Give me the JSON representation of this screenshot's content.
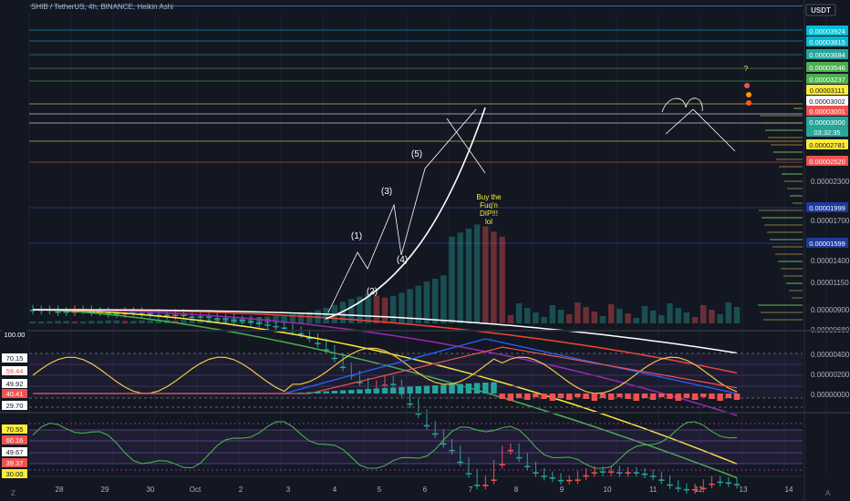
{
  "title": "SHIB / TetherUS, 4h, BINANCE, Heikin Ashi",
  "currency_badge": "USDT",
  "bottom_left_glyph": "Z",
  "bottom_right_glyph": "A",
  "chart_data": [
    {
      "type": "candlestick",
      "y_scale": "log",
      "ylim": [
        6.8e-06,
        4.3e-06
      ],
      "x_ticks": [
        "28",
        "29",
        "30",
        "Oct",
        "2",
        "3",
        "4",
        "5",
        "6",
        "7",
        "8",
        "9",
        "10",
        "11",
        "12",
        "13",
        "14"
      ],
      "y_ticks": [
        "0.00002300",
        "0.00001700",
        "0.00001400",
        "0.00001150",
        "0.00000900",
        "0.00000680"
      ],
      "price_labels": [
        {
          "value": "0.00003924",
          "color": "#00bcd4"
        },
        {
          "value": "0.00003815",
          "color": "#00bcd4"
        },
        {
          "value": "0.00003684",
          "color": "#26a69a"
        },
        {
          "value": "0.00003546",
          "color": "#4caf50"
        },
        {
          "value": "0.00003237",
          "color": "#4caf50"
        },
        {
          "value": "0.00003111",
          "color": "#ffeb3b"
        },
        {
          "value": "0.00003002",
          "color": "#ffffff"
        },
        {
          "value": "0.00003001",
          "color": "#ef5350"
        },
        {
          "value": "0.00003000",
          "color": "#26a69a"
        },
        {
          "value": "03:32:35",
          "color": "#26a69a"
        },
        {
          "value": "0.00002781",
          "color": "#ffeb3b"
        },
        {
          "value": "0.00002520",
          "color": "#ef5350"
        },
        {
          "value": "0.00001999",
          "color": "#1e3a9a"
        },
        {
          "value": "0.00001599",
          "color": "#1e3a9a"
        }
      ],
      "closes": [
        6.8e-06,
        6.8e-06,
        6.8e-06,
        6.9e-06,
        6.9e-06,
        6.8e-06,
        6.8e-06,
        6.9e-06,
        6.9e-06,
        7e-06,
        7e-06,
        6.9e-06,
        6.9e-06,
        7e-06,
        7e-06,
        7.1e-06,
        7.1e-06,
        7e-06,
        7.1e-06,
        7.2e-06,
        7.2e-06,
        7.2e-06,
        7.3e-06,
        7.3e-06,
        7.4e-06,
        7.4e-06,
        7.5e-06,
        7.6e-06,
        7.7e-06,
        7.8e-06,
        7.9e-06,
        8.1e-06,
        8.3e-06,
        8.6e-06,
        9e-06,
        9.5e-06,
        1.02e-05,
        1.1e-05,
        1.18e-05,
        1.25e-05,
        1.33e-05,
        1.28e-05,
        1.22e-05,
        1.27e-05,
        1.37e-05,
        1.5e-05,
        1.63e-05,
        1.8e-05,
        1.93e-05,
        2.1e-05,
        2.22e-05,
        2.45e-05,
        2.7e-05,
        2.98e-05,
        2.85e-05,
        2.5e-05,
        2.22e-05,
        2.18e-05,
        2.36e-05,
        2.54e-05,
        2.68e-05,
        2.76e-05,
        2.8e-05,
        2.86e-05,
        2.85e-05,
        2.75e-05,
        2.68e-05,
        2.64e-05,
        2.66e-05,
        2.63e-05,
        2.68e-05,
        2.66e-05,
        2.68e-05,
        2.71e-05,
        2.76e-05,
        2.85e-05,
        2.97e-05,
        3.05e-05,
        3.09e-05,
        3.06e-05,
        2.95e-05,
        2.87e-05,
        2.9e-05,
        2.92e-05,
        2.96e-05
      ],
      "ema_lines": [
        {
          "color": "#4caf50",
          "end": 2.81e-05
        },
        {
          "color": "#ffeb3b",
          "end": 2.5e-05
        },
        {
          "color": "#9c27b0",
          "end": 1.66e-05
        },
        {
          "color": "#f44336",
          "end": 1.16e-05
        },
        {
          "color": "#ffffff",
          "end": 9.8e-06
        }
      ],
      "annotations": [
        "(1)",
        "(2)",
        "(3)",
        "(4)",
        "(5)",
        "Buy the",
        "Fuq'n",
        "DIP!!!",
        "lol",
        "?"
      ]
    },
    {
      "type": "line",
      "panel": "macd-rsi",
      "y_ticks": [
        "0.00000400",
        "0.00000200",
        "0.00000000"
      ],
      "left_labels": [
        {
          "value": "100.00",
          "color": "#ffffff",
          "bg": "#131722"
        },
        {
          "value": "70.15",
          "color": "#131722",
          "bg": "#ffffff"
        },
        {
          "value": "59.44",
          "color": "#ef5350",
          "bg": "#ffffff"
        },
        {
          "value": "49.92",
          "color": "#131722",
          "bg": "#ffffff"
        },
        {
          "value": "40.41",
          "color": "#ffffff",
          "bg": "#ef5350"
        },
        {
          "value": "29.70",
          "color": "#131722",
          "bg": "#ffffff"
        }
      ]
    },
    {
      "type": "line",
      "panel": "stoch",
      "left_labels": [
        {
          "value": "70.55",
          "color": "#131722",
          "bg": "#ffeb3b"
        },
        {
          "value": "60.16",
          "color": "#ffffff",
          "bg": "#ef5350"
        },
        {
          "value": "49.67",
          "color": "#131722",
          "bg": "#ffffff"
        },
        {
          "value": "39.37",
          "color": "#ffffff",
          "bg": "#ef5350"
        },
        {
          "value": "30.00",
          "color": "#131722",
          "bg": "#ffeb3b"
        }
      ]
    }
  ]
}
